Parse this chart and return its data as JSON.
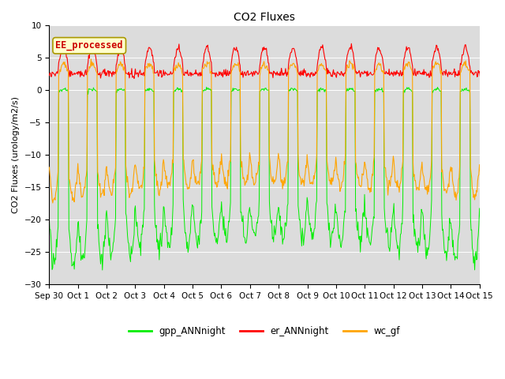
{
  "title": "CO2 Fluxes",
  "ylabel": "CO2 Fluxes (urology/m2/s)",
  "ylim": [
    -30,
    10
  ],
  "yticks": [
    -30,
    -25,
    -20,
    -15,
    -10,
    -5,
    0,
    5,
    10
  ],
  "background_color": "#dcdcdc",
  "annotation_text": "EE_processed",
  "annotation_bg": "#ffffcc",
  "annotation_edge": "#cccc00",
  "annotation_text_color": "#cc0000",
  "legend_labels": [
    "gpp_ANNnight",
    "er_ANNnight",
    "wc_gf"
  ],
  "legend_colors": [
    "#00ee00",
    "#ff0000",
    "#ffa500"
  ],
  "n_days": 16,
  "points_per_day": 48,
  "tick_labels": [
    "Sep 30",
    "Oct 1",
    "Oct 2",
    "Oct 3",
    "Oct 4",
    "Oct 5",
    "Oct 6",
    "Oct 7",
    "Oct 8",
    "Oct 9",
    "Oct 10",
    "Oct 11",
    "Oct 12",
    "Oct 13",
    "Oct 14",
    "Oct 15"
  ]
}
